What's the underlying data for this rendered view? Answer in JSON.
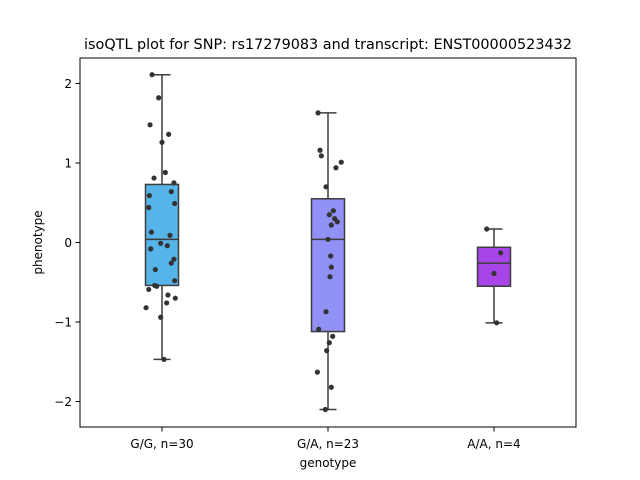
{
  "chart_data": {
    "type": "box",
    "title": "isoQTL plot for SNP: rs17279083 and transcript: ENST00000523432",
    "xlabel": "genotype",
    "ylabel": "phenotype",
    "ylim": [
      -2.32,
      2.32
    ],
    "yticks": [
      2,
      1,
      0,
      -1,
      -2
    ],
    "ytick_labels": [
      "2",
      "1",
      "0",
      "−1",
      "−2"
    ],
    "grid": false,
    "categories": [
      "G/G, n=30",
      "G/A, n=23",
      "A/A, n=4"
    ],
    "boxes": [
      {
        "category": "G/G, n=30",
        "color": "#56b4e9",
        "whisker_low": -1.47,
        "q1": -0.54,
        "median": 0.04,
        "q3": 0.73,
        "whisker_high": 2.11,
        "points": [
          [
            -0.15,
            2.11
          ],
          [
            -0.05,
            1.82
          ],
          [
            -0.18,
            1.48
          ],
          [
            0.1,
            1.36
          ],
          [
            0.0,
            1.26
          ],
          [
            -0.12,
            0.81
          ],
          [
            0.05,
            0.88
          ],
          [
            0.18,
            0.75
          ],
          [
            0.14,
            0.64
          ],
          [
            -0.19,
            0.59
          ],
          [
            0.19,
            0.49
          ],
          [
            -0.2,
            0.44
          ],
          [
            -0.16,
            0.13
          ],
          [
            0.12,
            0.09
          ],
          [
            -0.02,
            -0.01
          ],
          [
            0.08,
            -0.04
          ],
          [
            -0.17,
            -0.08
          ],
          [
            0.18,
            -0.21
          ],
          [
            0.14,
            -0.26
          ],
          [
            -0.1,
            -0.34
          ],
          [
            0.19,
            -0.48
          ],
          [
            -0.11,
            -0.54
          ],
          [
            -0.2,
            -0.59
          ],
          [
            0.09,
            -0.66
          ],
          [
            0.2,
            -0.7
          ],
          [
            0.07,
            -0.76
          ],
          [
            -0.24,
            -0.82
          ],
          [
            -0.02,
            -0.94
          ],
          [
            0.03,
            -1.47
          ],
          [
            -0.08,
            -0.55
          ]
        ]
      },
      {
        "category": "G/A, n=23",
        "color": "#9090f5",
        "whisker_low": -2.1,
        "q1": -1.12,
        "median": 0.04,
        "q3": 0.55,
        "whisker_high": 1.63,
        "points": [
          [
            -0.15,
            1.63
          ],
          [
            -0.12,
            1.16
          ],
          [
            -0.1,
            1.09
          ],
          [
            0.2,
            1.01
          ],
          [
            0.12,
            0.94
          ],
          [
            -0.03,
            0.7
          ],
          [
            0.08,
            0.4
          ],
          [
            0.02,
            0.35
          ],
          [
            0.1,
            0.3
          ],
          [
            0.14,
            0.26
          ],
          [
            0.05,
            0.22
          ],
          [
            0.0,
            0.04
          ],
          [
            0.04,
            -0.17
          ],
          [
            0.05,
            -0.31
          ],
          [
            0.03,
            -0.43
          ],
          [
            -0.03,
            -0.87
          ],
          [
            -0.14,
            -1.09
          ],
          [
            0.07,
            -1.18
          ],
          [
            0.02,
            -1.26
          ],
          [
            -0.02,
            -1.36
          ],
          [
            -0.16,
            -1.63
          ],
          [
            0.05,
            -1.82
          ],
          [
            -0.04,
            -2.1
          ]
        ]
      },
      {
        "category": "A/A, n=4",
        "color": "#a745e8",
        "whisker_low": -1.01,
        "q1": -0.55,
        "median": -0.26,
        "q3": -0.06,
        "whisker_high": 0.17,
        "points": [
          [
            -0.11,
            0.17
          ],
          [
            0.1,
            -0.13
          ],
          [
            0.0,
            -0.39
          ],
          [
            0.04,
            -1.01
          ]
        ]
      }
    ]
  }
}
